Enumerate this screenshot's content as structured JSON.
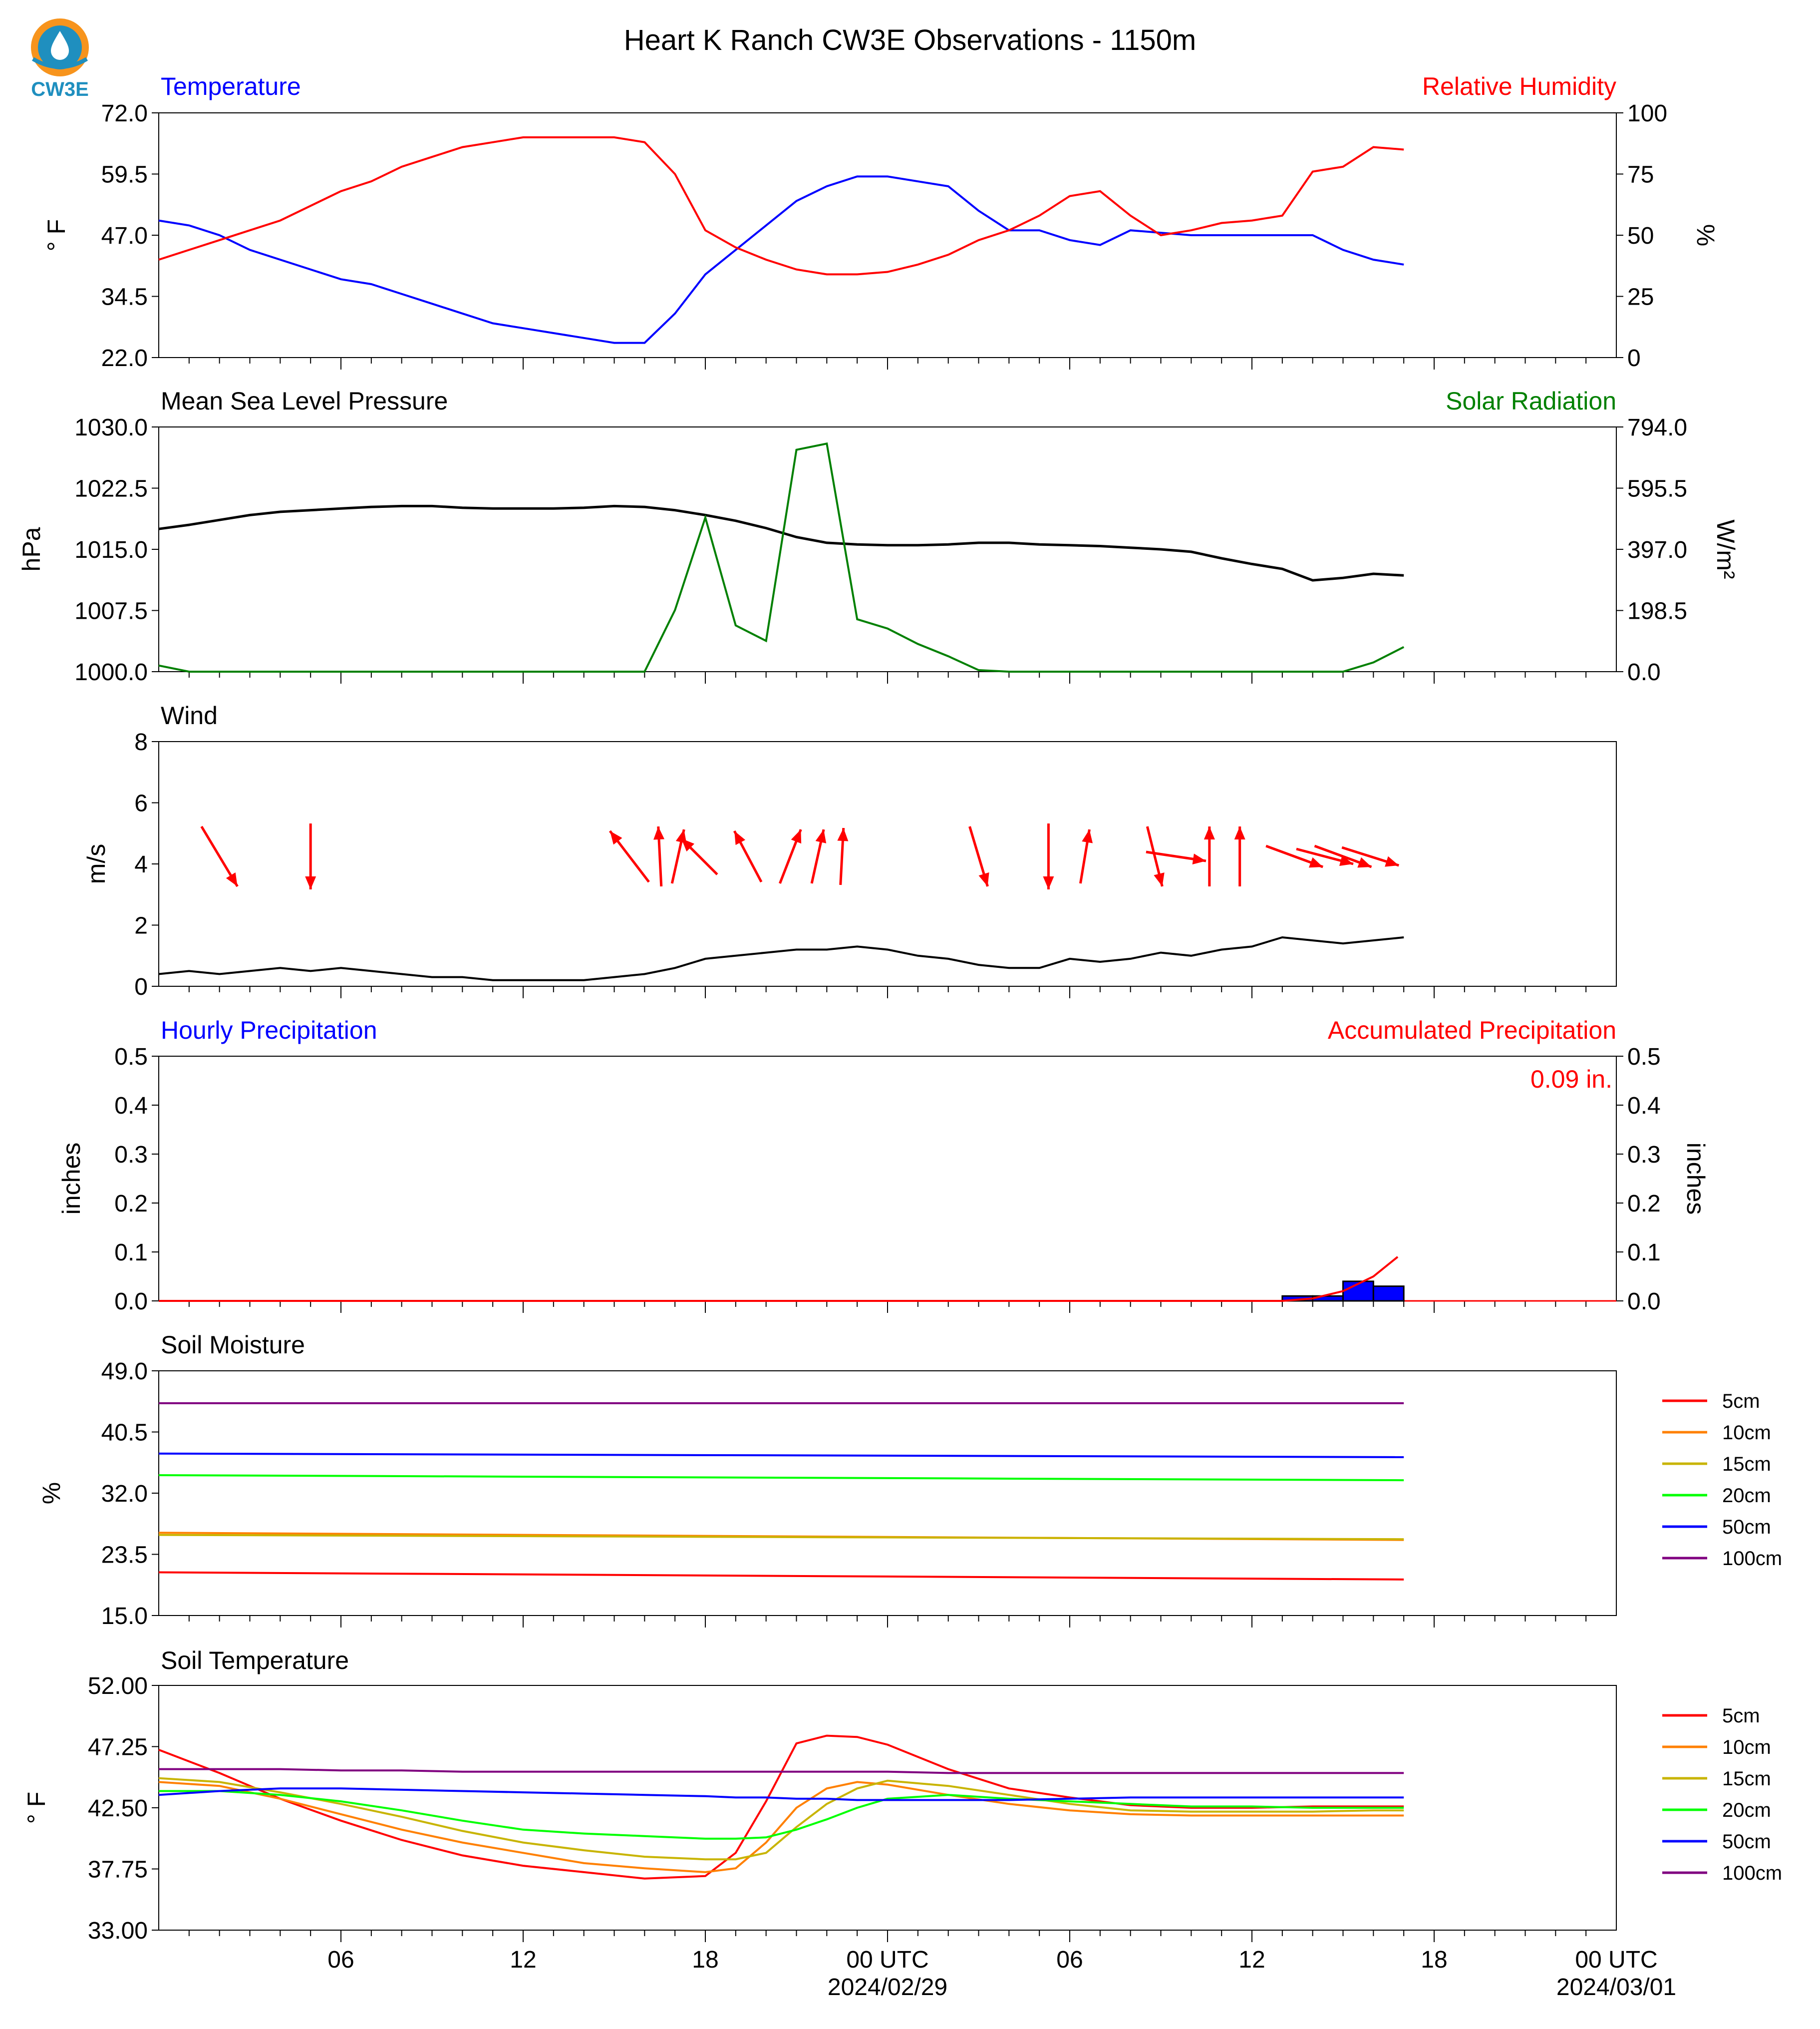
{
  "figure": {
    "title": "Heart K Ranch CW3E Observations - 1150m",
    "logo_text": "CW3E",
    "x_ticks": [
      "06",
      "12",
      "18",
      "00 UTC",
      "06",
      "12",
      "18",
      "00 UTC"
    ],
    "x_dates": [
      "2024/02/29",
      "2024/03/01"
    ]
  },
  "colors": {
    "red": "#ff0000",
    "blue": "#0000ff",
    "green": "#008000",
    "black": "#000000",
    "logo_orange": "#f7941d",
    "logo_blue": "#1f8fbf"
  },
  "chart_data": [
    {
      "type": "line",
      "left_title": "Temperature",
      "right_title": "Relative Humidity",
      "ylabel": "° F",
      "ylabel_right": "%",
      "ylim": [
        22.0,
        72.0
      ],
      "ylim_right": [
        0,
        100
      ],
      "yticks": [
        "72.0",
        "59.5",
        "47.0",
        "34.5",
        "22.0"
      ],
      "yticks_right": [
        "100",
        "75",
        "50",
        "25",
        "0"
      ],
      "x_hours": [
        0,
        1,
        2,
        3,
        4,
        5,
        6,
        7,
        8,
        9,
        10,
        11,
        12,
        13,
        14,
        15,
        16,
        17,
        18,
        19,
        20,
        21,
        22,
        23,
        24,
        25,
        26,
        27,
        28,
        29,
        30,
        31,
        32,
        33,
        34,
        35,
        36,
        37,
        38,
        39,
        40,
        41
      ],
      "series": [
        {
          "name": "Temperature",
          "axis": "left",
          "color": "#0000ff",
          "values": [
            50,
            49,
            47,
            44,
            42,
            40,
            38,
            37,
            35,
            33,
            31,
            29,
            28,
            27,
            26,
            25,
            25,
            31,
            39,
            44,
            49,
            54,
            57,
            59,
            59,
            58,
            57,
            52,
            48,
            48,
            46,
            45,
            48,
            47.5,
            47,
            47,
            47,
            47,
            47,
            44,
            42,
            41
          ]
        },
        {
          "name": "Relative Humidity",
          "axis": "right",
          "color": "#ff0000",
          "values": [
            40,
            44,
            48,
            52,
            56,
            62,
            68,
            72,
            78,
            82,
            86,
            88,
            90,
            90,
            90,
            90,
            88,
            75,
            52,
            45,
            40,
            36,
            34,
            34,
            35,
            38,
            42,
            48,
            52,
            58,
            66,
            68,
            58,
            50,
            52,
            55,
            56,
            58,
            76,
            78,
            86,
            85
          ]
        }
      ]
    },
    {
      "type": "line",
      "left_title": "Mean Sea Level Pressure",
      "right_title": "Solar Radiation",
      "ylabel": "hPa",
      "ylabel_right": "W/m²",
      "ylim": [
        1000.0,
        1030.0
      ],
      "ylim_right": [
        0.0,
        794.0
      ],
      "yticks": [
        "1030.0",
        "1022.5",
        "1015.0",
        "1007.5",
        "1000.0"
      ],
      "yticks_right": [
        "794.0",
        "595.5",
        "397.0",
        "198.5",
        "0.0"
      ],
      "x_hours": [
        0,
        1,
        2,
        3,
        4,
        5,
        6,
        7,
        8,
        9,
        10,
        11,
        12,
        13,
        14,
        15,
        16,
        17,
        18,
        19,
        20,
        21,
        22,
        23,
        24,
        25,
        26,
        27,
        28,
        29,
        30,
        31,
        32,
        33,
        34,
        35,
        36,
        37,
        38,
        39,
        40,
        41
      ],
      "series": [
        {
          "name": "Mean Sea Level Pressure",
          "axis": "left",
          "color": "#000000",
          "values": [
            1017.5,
            1018,
            1018.6,
            1019.2,
            1019.6,
            1019.8,
            1020,
            1020.2,
            1020.3,
            1020.3,
            1020.1,
            1020,
            1020,
            1020,
            1020.1,
            1020.3,
            1020.2,
            1019.8,
            1019.2,
            1018.5,
            1017.6,
            1016.5,
            1015.8,
            1015.6,
            1015.5,
            1015.5,
            1015.6,
            1015.8,
            1015.8,
            1015.6,
            1015.5,
            1015.4,
            1015.2,
            1015,
            1014.7,
            1013.9,
            1013.2,
            1012.6,
            1011.2,
            1011.5,
            1012,
            1011.8
          ]
        },
        {
          "name": "Solar Radiation",
          "axis": "right",
          "color": "#008000",
          "values": [
            20,
            0,
            0,
            0,
            0,
            0,
            0,
            0,
            0,
            0,
            0,
            0,
            0,
            0,
            0,
            0,
            0,
            200,
            500,
            150,
            100,
            720,
            740,
            170,
            140,
            90,
            50,
            5,
            0,
            0,
            0,
            0,
            0,
            0,
            0,
            0,
            0,
            0,
            0,
            0,
            30,
            80
          ]
        }
      ]
    },
    {
      "type": "line",
      "left_title": "Wind",
      "ylabel": "m/s",
      "ylim": [
        0,
        8
      ],
      "yticks": [
        "8",
        "6",
        "4",
        "2",
        "0"
      ],
      "x_hours": [
        0,
        1,
        2,
        3,
        4,
        5,
        6,
        7,
        8,
        9,
        10,
        11,
        12,
        13,
        14,
        15,
        16,
        17,
        18,
        19,
        20,
        21,
        22,
        23,
        24,
        25,
        26,
        27,
        28,
        29,
        30,
        31,
        32,
        33,
        34,
        35,
        36,
        37,
        38,
        39,
        40,
        41
      ],
      "series": [
        {
          "name": "Wind Speed",
          "color": "#000000",
          "values": [
            0.4,
            0.5,
            0.4,
            0.5,
            0.6,
            0.5,
            0.6,
            0.5,
            0.4,
            0.3,
            0.3,
            0.2,
            0.2,
            0.2,
            0.2,
            0.3,
            0.4,
            0.6,
            0.9,
            1.0,
            1.1,
            1.2,
            1.2,
            1.3,
            1.2,
            1.0,
            0.9,
            0.7,
            0.6,
            0.6,
            0.9,
            0.8,
            0.9,
            1.1,
            1.0,
            1.2,
            1.3,
            1.6,
            1.5,
            1.4,
            1.5,
            1.6
          ]
        },
        {
          "name": "Wind Direction Arrows",
          "color": "#ff0000",
          "type": "quiver",
          "arrows": [
            {
              "x": 2.0,
              "u": 1.2,
              "v": -2.0
            },
            {
              "x": 5.0,
              "u": 0.0,
              "v": -2.2
            },
            {
              "x": 15.5,
              "u": -1.3,
              "v": 1.7
            },
            {
              "x": 16.5,
              "u": -0.1,
              "v": 2.0
            },
            {
              "x": 17.1,
              "u": 0.4,
              "v": 1.8
            },
            {
              "x": 17.8,
              "u": -1.2,
              "v": 1.2
            },
            {
              "x": 19.4,
              "u": -0.9,
              "v": 1.7
            },
            {
              "x": 20.8,
              "u": 0.7,
              "v": 1.8
            },
            {
              "x": 21.7,
              "u": 0.4,
              "v": 1.8
            },
            {
              "x": 22.5,
              "u": 0.1,
              "v": 1.9
            },
            {
              "x": 27.0,
              "u": 0.6,
              "v": -2.0
            },
            {
              "x": 29.3,
              "u": 0.0,
              "v": -2.2
            },
            {
              "x": 30.5,
              "u": 0.3,
              "v": 1.8
            },
            {
              "x": 32.8,
              "u": 0.5,
              "v": -2.0
            },
            {
              "x": 33.5,
              "u": 2.0,
              "v": -0.3
            },
            {
              "x": 34.6,
              "u": 0.0,
              "v": 2.0
            },
            {
              "x": 35.6,
              "u": 0.0,
              "v": 2.0
            },
            {
              "x": 37.4,
              "u": 1.9,
              "v": -0.7
            },
            {
              "x": 38.4,
              "u": 1.9,
              "v": -0.5
            },
            {
              "x": 39.0,
              "u": 1.9,
              "v": -0.7
            },
            {
              "x": 39.9,
              "u": 1.9,
              "v": -0.6
            }
          ]
        }
      ]
    },
    {
      "type": "bar",
      "left_title": "Hourly Precipitation",
      "right_title": "Accumulated Precipitation",
      "annotation": "0.09 in.",
      "ylabel": "inches",
      "ylabel_right": "inches",
      "ylim": [
        0.0,
        0.5
      ],
      "ylim_right": [
        0.0,
        0.5
      ],
      "yticks": [
        "0.5",
        "0.4",
        "0.3",
        "0.2",
        "0.1",
        "0.0"
      ],
      "yticks_right": [
        "0.5",
        "0.4",
        "0.3",
        "0.2",
        "0.1",
        "0.0"
      ],
      "bars_x_hours": [
        37,
        38,
        39,
        40
      ],
      "bars_values": [
        0.01,
        0.01,
        0.04,
        0.03
      ],
      "series": [
        {
          "name": "Accumulated Precipitation",
          "color": "#ff0000",
          "x_hours": [
            0,
            37,
            38,
            39,
            40,
            40.8
          ],
          "values": [
            0,
            0,
            0.005,
            0.02,
            0.05,
            0.09
          ]
        }
      ]
    },
    {
      "type": "line",
      "left_title": "Soil Moisture",
      "ylabel": "%",
      "ylim": [
        15.0,
        49.0
      ],
      "yticks": [
        "49.0",
        "40.5",
        "32.0",
        "23.5",
        "15.0"
      ],
      "x_hours": [
        0,
        41
      ],
      "legend": [
        "5cm",
        "10cm",
        "15cm",
        "20cm",
        "50cm",
        "100cm"
      ],
      "series": [
        {
          "name": "5cm",
          "color": "#ff0000",
          "values": [
            21.0,
            20.0
          ]
        },
        {
          "name": "10cm",
          "color": "#ff8000",
          "values": [
            26.5,
            25.5
          ]
        },
        {
          "name": "15cm",
          "color": "#c8b400",
          "values": [
            26.2,
            25.6
          ]
        },
        {
          "name": "20cm",
          "color": "#00ff00",
          "values": [
            34.5,
            33.8
          ]
        },
        {
          "name": "50cm",
          "color": "#0000ff",
          "values": [
            37.5,
            37.0
          ]
        },
        {
          "name": "100cm",
          "color": "#800080",
          "values": [
            44.5,
            44.5
          ]
        }
      ]
    },
    {
      "type": "line",
      "left_title": "Soil Temperature",
      "ylabel": "° F",
      "ylim": [
        33.0,
        52.0
      ],
      "yticks": [
        "52.00",
        "47.25",
        "42.50",
        "37.75",
        "33.00"
      ],
      "x_hours": [
        0,
        2,
        4,
        6,
        8,
        10,
        12,
        14,
        16,
        18,
        19,
        20,
        21,
        22,
        23,
        24,
        26,
        28,
        30,
        32,
        34,
        36,
        38,
        40,
        41
      ],
      "legend": [
        "5cm",
        "10cm",
        "15cm",
        "20cm",
        "50cm",
        "100cm"
      ],
      "series": [
        {
          "name": "5cm",
          "color": "#ff0000",
          "values": [
            47,
            45.2,
            43.2,
            41.5,
            40,
            38.8,
            38,
            37.5,
            37,
            37.2,
            39,
            43,
            47.5,
            48.1,
            48,
            47.4,
            45.5,
            44,
            43.3,
            42.7,
            42.5,
            42.5,
            42.6,
            42.6,
            42.6
          ]
        },
        {
          "name": "10cm",
          "color": "#ff8000",
          "values": [
            44.5,
            44.2,
            43.2,
            42,
            40.8,
            39.8,
            39,
            38.2,
            37.8,
            37.5,
            37.8,
            39.8,
            42.5,
            44,
            44.5,
            44.3,
            43.5,
            42.8,
            42.3,
            42,
            41.9,
            41.9,
            41.9,
            41.9,
            41.9
          ]
        },
        {
          "name": "15cm",
          "color": "#c8b400",
          "values": [
            44.8,
            44.5,
            43.7,
            42.8,
            41.8,
            40.7,
            39.8,
            39.2,
            38.7,
            38.5,
            38.5,
            39,
            41,
            42.8,
            44,
            44.6,
            44.2,
            43.5,
            42.8,
            42.3,
            42.2,
            42.2,
            42.2,
            42.3,
            42.3
          ]
        },
        {
          "name": "20cm",
          "color": "#00ff00",
          "values": [
            43.8,
            43.8,
            43.5,
            43,
            42.3,
            41.5,
            40.8,
            40.5,
            40.3,
            40.1,
            40.1,
            40.2,
            40.8,
            41.6,
            42.5,
            43.2,
            43.5,
            43.2,
            43,
            42.8,
            42.6,
            42.6,
            42.5,
            42.5,
            42.5
          ]
        },
        {
          "name": "50cm",
          "color": "#0000ff",
          "values": [
            43.5,
            43.8,
            44,
            44,
            43.9,
            43.8,
            43.7,
            43.6,
            43.5,
            43.4,
            43.3,
            43.3,
            43.2,
            43.2,
            43.1,
            43.1,
            43.1,
            43.1,
            43.2,
            43.3,
            43.3,
            43.3,
            43.3,
            43.3,
            43.3
          ]
        },
        {
          "name": "100cm",
          "color": "#800080",
          "values": [
            45.5,
            45.5,
            45.5,
            45.4,
            45.4,
            45.3,
            45.3,
            45.3,
            45.3,
            45.3,
            45.3,
            45.3,
            45.3,
            45.3,
            45.3,
            45.3,
            45.2,
            45.2,
            45.2,
            45.2,
            45.2,
            45.2,
            45.2,
            45.2,
            45.2
          ]
        }
      ]
    }
  ]
}
